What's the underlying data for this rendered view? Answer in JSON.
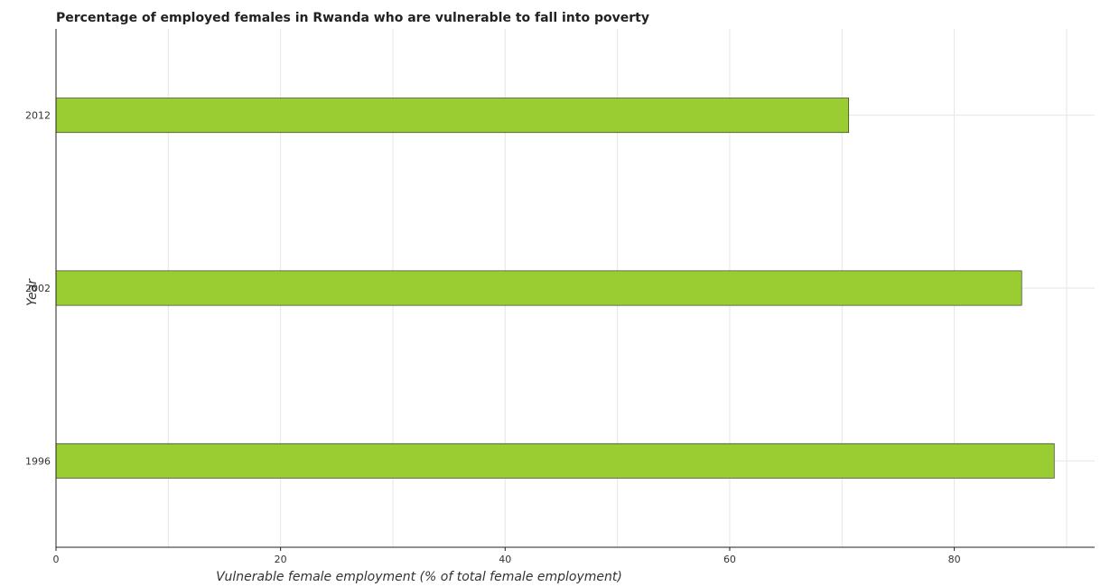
{
  "chart_data": {
    "type": "bar",
    "orientation": "horizontal",
    "title": "Percentage of employed females in Rwanda who are vulnerable to fall into poverty",
    "xlabel": "Vulnerable female employment (% of total female employment)",
    "ylabel": "Year",
    "categories": [
      "1996",
      "2002",
      "2012"
    ],
    "values": [
      88.9,
      86.0,
      70.6
    ],
    "xlim": [
      0,
      92.5
    ],
    "xticks": [
      "0",
      "20",
      "40",
      "60",
      "80"
    ],
    "grid": true,
    "bar_color": "#9acd32"
  }
}
